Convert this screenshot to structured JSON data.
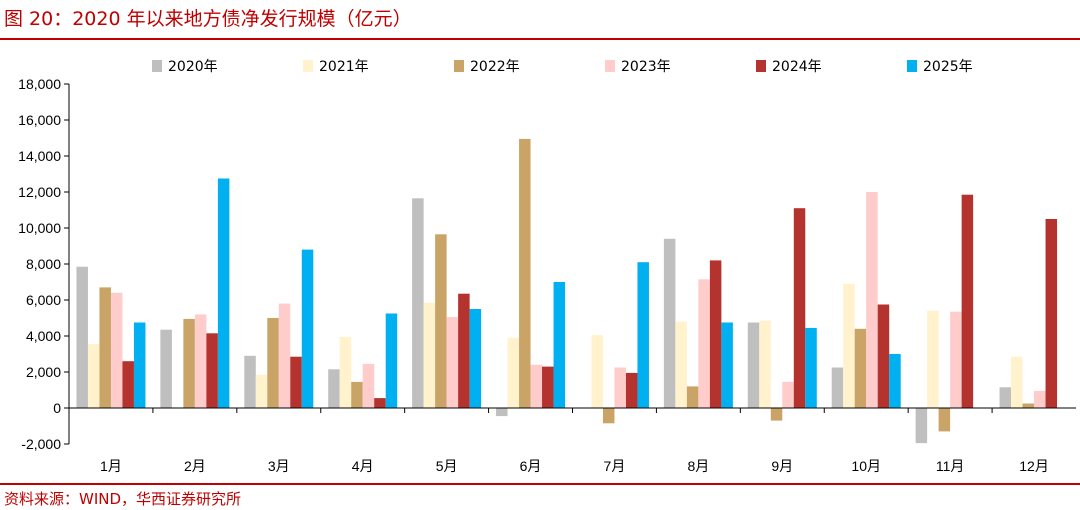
{
  "header": {
    "title": "图 20：2020 年以来地方债净发行规模（亿元）"
  },
  "footer": {
    "source": "资料来源：WIND，华西证券研究所"
  },
  "chart_data": {
    "type": "bar",
    "title": "图 20：2020 年以来地方债净发行规模（亿元）",
    "ylabel": "",
    "xlabel": "",
    "ylim": [
      -2000,
      18000
    ],
    "yticks": [
      -2000,
      0,
      2000,
      4000,
      6000,
      8000,
      10000,
      12000,
      14000,
      16000,
      18000
    ],
    "ytick_labels": [
      "-2,000",
      "0",
      "2,000",
      "4,000",
      "6,000",
      "8,000",
      "10,000",
      "12,000",
      "14,000",
      "16,000",
      "18,000"
    ],
    "categories": [
      "1月",
      "2月",
      "3月",
      "4月",
      "5月",
      "6月",
      "7月",
      "8月",
      "9月",
      "10月",
      "11月",
      "12月"
    ],
    "legend_position": "top",
    "grid": false,
    "series": [
      {
        "name": "2020年",
        "color": "#bfbfbf",
        "values": [
          7850,
          4350,
          2900,
          2150,
          11650,
          -450,
          null,
          9400,
          4750,
          2250,
          -1950,
          1150
        ]
      },
      {
        "name": "2021年",
        "color": "#fff2cc",
        "values": [
          3550,
          null,
          1850,
          3950,
          5850,
          3900,
          4050,
          4800,
          4850,
          6900,
          5400,
          2850
        ]
      },
      {
        "name": "2022年",
        "color": "#c9a466",
        "values": [
          6700,
          4950,
          5000,
          1450,
          9650,
          14950,
          -850,
          1200,
          -700,
          4400,
          -1300,
          250
        ]
      },
      {
        "name": "2023年",
        "color": "#ffcccc",
        "values": [
          6400,
          5200,
          5800,
          2450,
          5050,
          2400,
          2250,
          7150,
          1450,
          12000,
          5350,
          950
        ]
      },
      {
        "name": "2024年",
        "color": "#b4332e",
        "values": [
          2600,
          4150,
          2850,
          550,
          6350,
          2300,
          1950,
          8200,
          11100,
          5750,
          11850,
          10500
        ]
      },
      {
        "name": "2025年",
        "color": "#00b0f0",
        "values": [
          4750,
          12750,
          8800,
          5250,
          5500,
          7000,
          8100,
          4750,
          4450,
          3000,
          null,
          null
        ]
      }
    ]
  }
}
